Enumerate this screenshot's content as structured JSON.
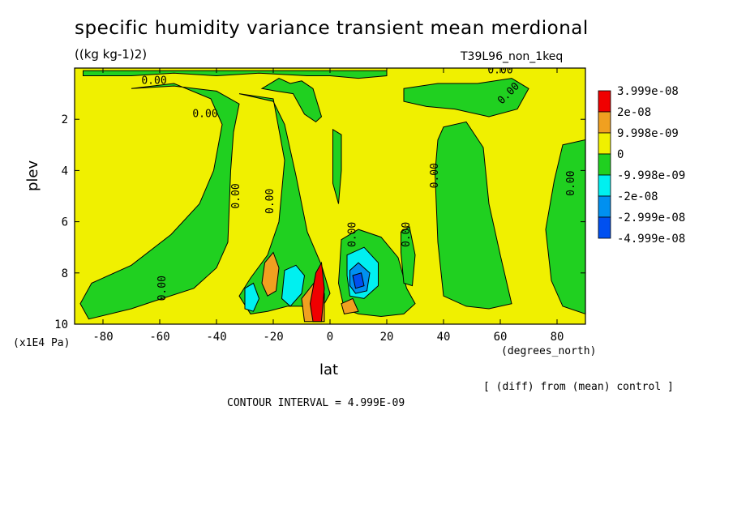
{
  "chart_data": {
    "type": "heatmap",
    "title": "specific humidity variance transient mean merdional",
    "units_label": "((kg kg-1)2)",
    "run_label": "T39L96_non_1keq",
    "xlabel": "lat",
    "ylabel": "plev",
    "x_units": "(degrees_north)",
    "y_units": "(x1E4 Pa)",
    "xlim": [
      -90,
      90
    ],
    "ylim": [
      10,
      0
    ],
    "x_ticks": [
      -80,
      -60,
      -40,
      -20,
      0,
      20,
      40,
      60,
      80
    ],
    "x_tick_labels": [
      "-80",
      "-60",
      "-40",
      "-20",
      "0",
      "20",
      "40",
      "60",
      "80"
    ],
    "y_ticks": [
      2,
      4,
      6,
      8,
      10
    ],
    "y_tick_labels": [
      "2",
      "4",
      "6",
      "8",
      "10"
    ],
    "note": "[ (diff) from (mean) control ]",
    "contour_interval_text": "CONTOUR INTERVAL = 4.999E-09",
    "contour_label": "0.00",
    "legend": {
      "position": "right",
      "levels": [
        {
          "label": "3.999e-08",
          "color": "#f00000"
        },
        {
          "label": "2e-08",
          "color": "#f0a020"
        },
        {
          "label": "9.998e-09",
          "color": "#f0f000"
        },
        {
          "label": "0",
          "color": "#20d020"
        },
        {
          "label": "-9.998e-09",
          "color": "#00f0f0"
        },
        {
          "label": "-2e-08",
          "color": "#0090f0"
        },
        {
          "label": "-2.999e-08",
          "color": "#0050f0"
        },
        {
          "label": "-4.999e-08",
          "color": null
        }
      ]
    },
    "colors": {
      "red": "#f00000",
      "orange": "#f0a020",
      "yellow": "#f0f000",
      "green": "#20d020",
      "cyan": "#00f0f0",
      "lightblue": "#0090f0",
      "blue": "#0050f0"
    },
    "regions": [
      {
        "color": "green",
        "points": [
          [
            -87,
            0.3
          ],
          [
            -70,
            0.3
          ],
          [
            -55,
            0.2
          ],
          [
            -40,
            0.3
          ],
          [
            -25,
            0.2
          ],
          [
            -8,
            0.3
          ],
          [
            0,
            0.3
          ],
          [
            10,
            0.4
          ],
          [
            20,
            0.3
          ],
          [
            20,
            0.1
          ],
          [
            -87,
            0.1
          ]
        ]
      },
      {
        "color": "green",
        "points": [
          [
            -70,
            0.8
          ],
          [
            -55,
            0.6
          ],
          [
            -42,
            1.2
          ],
          [
            -38,
            2.2
          ],
          [
            -41,
            4.0
          ],
          [
            -46,
            5.3
          ],
          [
            -56,
            6.5
          ],
          [
            -70,
            7.7
          ],
          [
            -84,
            8.4
          ],
          [
            -88,
            9.2
          ],
          [
            -85,
            9.8
          ],
          [
            -70,
            9.4
          ],
          [
            -62,
            9.1
          ],
          [
            -48,
            8.6
          ],
          [
            -40,
            7.8
          ],
          [
            -36,
            6.8
          ],
          [
            -35,
            4.0
          ],
          [
            -34,
            2.5
          ],
          [
            -32,
            1.4
          ],
          [
            -40,
            0.9
          ],
          [
            -55,
            0.7
          ]
        ]
      },
      {
        "color": "green",
        "points": [
          [
            -32,
            1.0
          ],
          [
            -20,
            1.2
          ],
          [
            -16,
            3.6
          ],
          [
            -18,
            6.0
          ],
          [
            -22,
            7.3
          ],
          [
            -28,
            8.2
          ],
          [
            -32,
            8.9
          ],
          [
            -28,
            9.6
          ],
          [
            -22,
            9.5
          ],
          [
            -15,
            9.3
          ],
          [
            -10,
            9.3
          ],
          [
            -4,
            9.6
          ],
          [
            0,
            8.8
          ],
          [
            -3,
            7.7
          ],
          [
            -8,
            6.4
          ],
          [
            -12,
            4.2
          ],
          [
            -16,
            2.2
          ],
          [
            -20,
            1.3
          ]
        ]
      },
      {
        "color": "green",
        "points": [
          [
            -24,
            0.8
          ],
          [
            -18,
            0.4
          ],
          [
            -14,
            0.6
          ],
          [
            -10,
            0.5
          ],
          [
            -6,
            0.8
          ],
          [
            -3,
            1.9
          ],
          [
            -5,
            2.1
          ],
          [
            -9,
            1.8
          ],
          [
            -13,
            1.0
          ],
          [
            -19,
            0.9
          ]
        ]
      },
      {
        "color": "green",
        "points": [
          [
            1,
            2.4
          ],
          [
            4,
            2.6
          ],
          [
            4,
            4.0
          ],
          [
            3,
            5.3
          ],
          [
            1,
            4.5
          ]
        ]
      },
      {
        "color": "green",
        "points": [
          [
            4,
            6.7
          ],
          [
            10,
            6.3
          ],
          [
            18,
            6.6
          ],
          [
            24,
            7.4
          ],
          [
            27,
            8.6
          ],
          [
            30,
            9.2
          ],
          [
            26,
            9.6
          ],
          [
            18,
            9.7
          ],
          [
            10,
            9.6
          ],
          [
            5,
            9.4
          ],
          [
            3,
            8.4
          ]
        ]
      },
      {
        "color": "green",
        "points": [
          [
            25,
            6.4
          ],
          [
            28,
            6.2
          ],
          [
            30,
            7.3
          ],
          [
            29,
            8.5
          ],
          [
            26,
            8.4
          ],
          [
            25,
            7.2
          ]
        ]
      },
      {
        "color": "green",
        "points": [
          [
            26,
            0.8
          ],
          [
            38,
            0.6
          ],
          [
            52,
            0.6
          ],
          [
            64,
            0.4
          ],
          [
            70,
            0.8
          ],
          [
            66,
            1.6
          ],
          [
            56,
            1.9
          ],
          [
            44,
            1.6
          ],
          [
            34,
            1.5
          ],
          [
            26,
            1.3
          ]
        ]
      },
      {
        "color": "green",
        "points": [
          [
            40,
            2.3
          ],
          [
            48,
            2.1
          ],
          [
            54,
            3.1
          ],
          [
            56,
            5.3
          ],
          [
            60,
            7.3
          ],
          [
            64,
            9.2
          ],
          [
            56,
            9.4
          ],
          [
            48,
            9.3
          ],
          [
            40,
            8.9
          ],
          [
            38,
            6.8
          ],
          [
            37,
            4.1
          ],
          [
            38,
            2.8
          ]
        ]
      },
      {
        "color": "green",
        "points": [
          [
            82,
            3.0
          ],
          [
            90,
            2.8
          ],
          [
            90,
            9.6
          ],
          [
            82,
            9.3
          ],
          [
            78,
            8.3
          ],
          [
            76,
            6.3
          ],
          [
            79,
            4.4
          ]
        ]
      },
      {
        "color": "orange",
        "points": [
          [
            -23,
            7.6
          ],
          [
            -20,
            7.2
          ],
          [
            -18,
            7.8
          ],
          [
            -19,
            8.7
          ],
          [
            -22,
            8.9
          ],
          [
            -24,
            8.4
          ]
        ]
      },
      {
        "color": "orange",
        "points": [
          [
            -10,
            9.0
          ],
          [
            -5,
            8.3
          ],
          [
            -2,
            8.8
          ],
          [
            -2,
            9.9
          ],
          [
            -9,
            9.9
          ]
        ]
      },
      {
        "color": "orange",
        "points": [
          [
            4,
            9.2
          ],
          [
            8,
            9.0
          ],
          [
            10,
            9.5
          ],
          [
            5,
            9.6
          ]
        ]
      },
      {
        "color": "red",
        "points": [
          [
            -7,
            9.2
          ],
          [
            -5,
            8.0
          ],
          [
            -3,
            7.6
          ],
          [
            -2,
            8.6
          ],
          [
            -3,
            9.9
          ],
          [
            -6,
            9.9
          ]
        ]
      },
      {
        "color": "cyan",
        "points": [
          [
            -30,
            8.6
          ],
          [
            -27,
            8.4
          ],
          [
            -25,
            9.0
          ],
          [
            -27,
            9.5
          ],
          [
            -30,
            9.4
          ]
        ]
      },
      {
        "color": "cyan",
        "points": [
          [
            -16,
            7.9
          ],
          [
            -12,
            7.7
          ],
          [
            -9,
            8.1
          ],
          [
            -10,
            8.8
          ],
          [
            -14,
            9.3
          ],
          [
            -17,
            9.0
          ]
        ]
      },
      {
        "color": "cyan",
        "points": [
          [
            6,
            7.3
          ],
          [
            12,
            7.0
          ],
          [
            17,
            7.6
          ],
          [
            17,
            8.5
          ],
          [
            12,
            9.0
          ],
          [
            7,
            8.9
          ],
          [
            6,
            8.1
          ]
        ]
      },
      {
        "color": "lightblue",
        "points": [
          [
            7,
            7.9
          ],
          [
            10,
            7.6
          ],
          [
            14,
            8.0
          ],
          [
            13,
            8.7
          ],
          [
            9,
            8.8
          ],
          [
            7,
            8.5
          ]
        ]
      },
      {
        "color": "blue",
        "points": [
          [
            8,
            8.1
          ],
          [
            11,
            8.0
          ],
          [
            12,
            8.5
          ],
          [
            9,
            8.6
          ]
        ]
      }
    ],
    "zero_labels": [
      {
        "x": -62,
        "y": 0.5,
        "angle": 0
      },
      {
        "x": -44,
        "y": 1.8,
        "angle": 0
      },
      {
        "x": -33,
        "y": 5.0,
        "angle": -90
      },
      {
        "x": -21,
        "y": 5.2,
        "angle": -90
      },
      {
        "x": -59,
        "y": 8.6,
        "angle": -90
      },
      {
        "x": 8,
        "y": 6.5,
        "angle": -90
      },
      {
        "x": 27,
        "y": 6.5,
        "angle": -90
      },
      {
        "x": 37,
        "y": 4.2,
        "angle": -90
      },
      {
        "x": 60,
        "y": 0.1,
        "angle": 0
      },
      {
        "x": 63,
        "y": 1.0,
        "angle": -45
      },
      {
        "x": 85,
        "y": 4.5,
        "angle": -90
      }
    ]
  }
}
